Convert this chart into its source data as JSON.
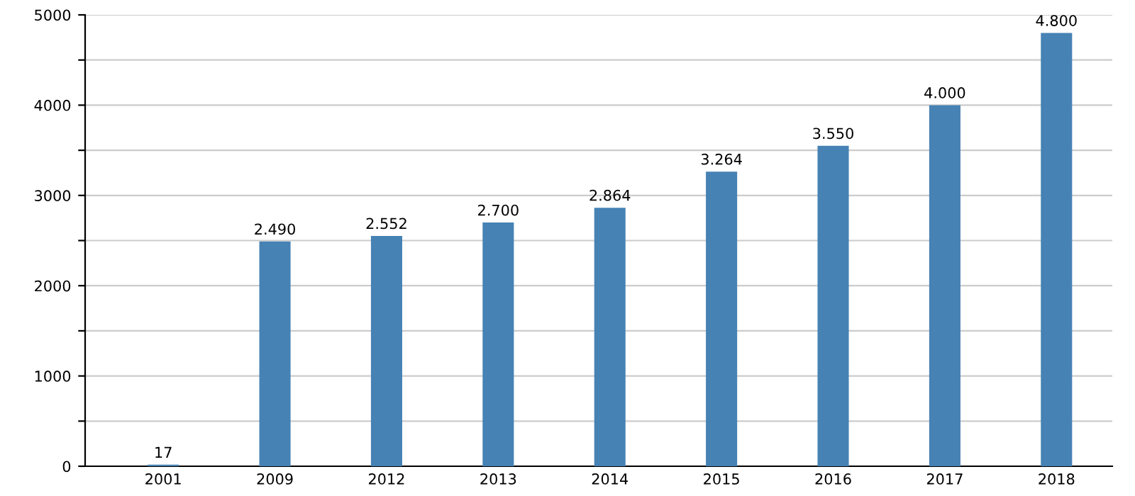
{
  "chart_data": {
    "type": "bar",
    "categories": [
      "2001",
      "2009",
      "2012",
      "2013",
      "2014",
      "2015",
      "2016",
      "2017",
      "2018"
    ],
    "values": [
      17,
      2490,
      2552,
      2700,
      2864,
      3264,
      3550,
      4000,
      4800
    ],
    "value_labels": [
      "17",
      "2.490",
      "2.552",
      "2.700",
      "2.864",
      "3.264",
      "3.550",
      "4.000",
      "4.800"
    ],
    "color": "#4682b4",
    "ylim": [
      0,
      5000
    ],
    "yticks": [
      0,
      {
        "value": 500,
        "label": null
      },
      1000,
      {
        "value": 1500,
        "label": null
      },
      2000,
      {
        "value": 2500,
        "label": null
      },
      3000,
      {
        "value": 3500,
        "label": null
      },
      4000,
      {
        "value": 4500,
        "label": null
      },
      5000
    ],
    "grid": "y"
  }
}
